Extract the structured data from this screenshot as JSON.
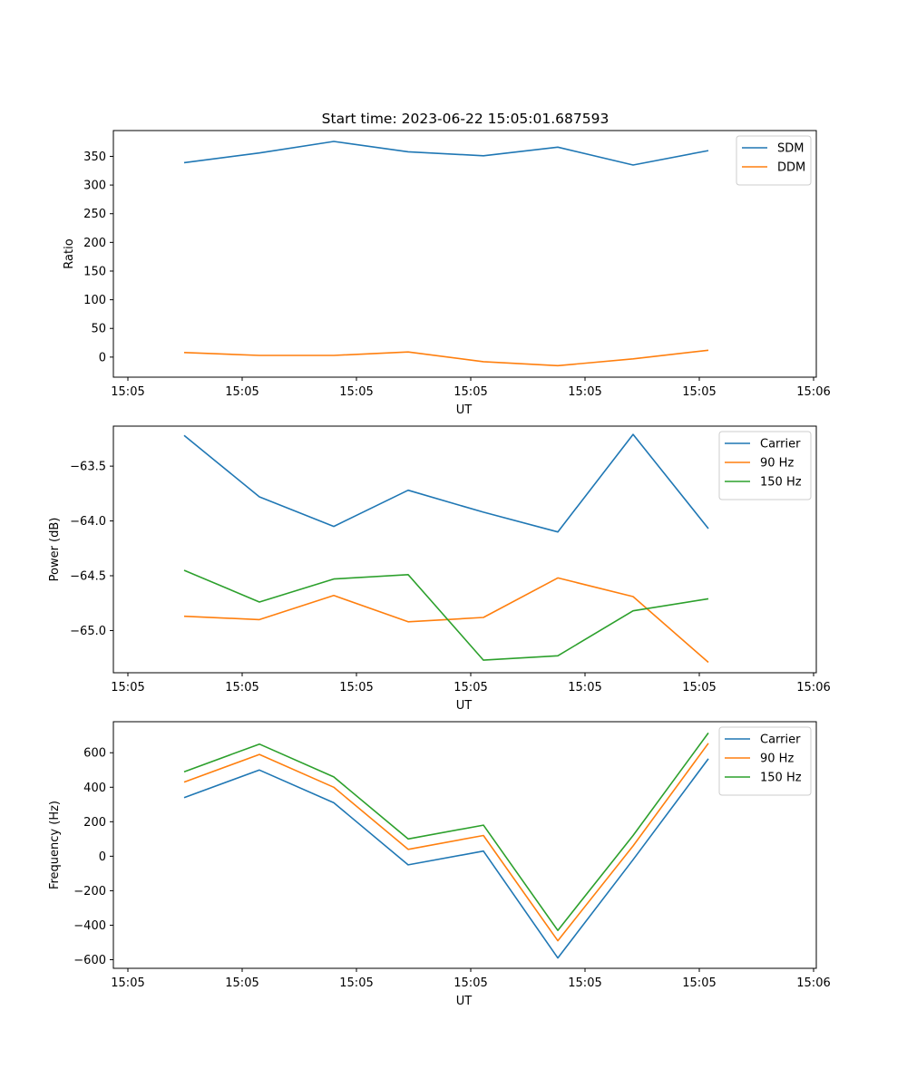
{
  "figure": {
    "title": "Start time: 2023-06-22 15:05:01.687593",
    "colors": {
      "blue": "#1f77b4",
      "orange": "#ff7f0e",
      "green": "#2ca02c"
    }
  },
  "chart_data": [
    {
      "type": "line",
      "title": "Start time: 2023-06-22 15:05:01.687593",
      "xlabel": "UT",
      "ylabel": "Ratio",
      "x_ticks": [
        "15:05",
        "15:05",
        "15:05",
        "15:05",
        "15:05",
        "15:05",
        "15:06"
      ],
      "y_ticks": [
        0,
        50,
        100,
        150,
        200,
        250,
        300,
        350
      ],
      "ylim": [
        -35,
        395
      ],
      "legend": "top-right",
      "grid": false,
      "series": [
        {
          "name": "SDM",
          "color": "#1f77b4",
          "values": [
            339,
            356,
            376,
            358,
            351,
            366,
            335,
            360
          ]
        },
        {
          "name": "DDM",
          "color": "#ff7f0e",
          "values": [
            8,
            3,
            3,
            9,
            -8,
            -15,
            -3,
            12
          ]
        }
      ]
    },
    {
      "type": "line",
      "title": "",
      "xlabel": "UT",
      "ylabel": "Power (dB)",
      "x_ticks": [
        "15:05",
        "15:05",
        "15:05",
        "15:05",
        "15:05",
        "15:05",
        "15:06"
      ],
      "y_ticks": [
        "−63.5",
        "−64.0",
        "−64.5",
        "−65.0"
      ],
      "y_tick_values": [
        -63.5,
        -64.0,
        -64.5,
        -65.0
      ],
      "ylim": [
        -65.385,
        -63.135
      ],
      "legend": "top-right",
      "grid": false,
      "series": [
        {
          "name": "Carrier",
          "color": "#1f77b4",
          "values": [
            -63.22,
            -63.78,
            -64.05,
            -63.72,
            -63.92,
            -64.1,
            -63.21,
            -64.07
          ]
        },
        {
          "name": "90 Hz",
          "color": "#ff7f0e",
          "values": [
            -64.87,
            -64.9,
            -64.68,
            -64.92,
            -64.88,
            -64.52,
            -64.69,
            -65.29
          ]
        },
        {
          "name": "150 Hz",
          "color": "#2ca02c",
          "values": [
            -64.45,
            -64.74,
            -64.53,
            -64.49,
            -65.27,
            -65.23,
            -64.82,
            -64.71
          ]
        }
      ]
    },
    {
      "type": "line",
      "title": "",
      "xlabel": "UT",
      "ylabel": "Frequency (Hz)",
      "x_ticks": [
        "15:05",
        "15:05",
        "15:05",
        "15:05",
        "15:05",
        "15:05",
        "15:06"
      ],
      "y_ticks": [
        "600",
        "400",
        "200",
        "0",
        "−200",
        "−400",
        "−600"
      ],
      "y_tick_values": [
        600,
        400,
        200,
        0,
        -200,
        -400,
        -600
      ],
      "ylim": [
        -650,
        780
      ],
      "legend": "top-right",
      "grid": false,
      "series": [
        {
          "name": "Carrier",
          "color": "#1f77b4",
          "values": [
            340,
            500,
            310,
            -50,
            30,
            -590,
            -20,
            565
          ]
        },
        {
          "name": "90 Hz",
          "color": "#ff7f0e",
          "values": [
            430,
            590,
            400,
            40,
            120,
            -490,
            60,
            655
          ]
        },
        {
          "name": "150 Hz",
          "color": "#2ca02c",
          "values": [
            490,
            650,
            460,
            100,
            180,
            -430,
            120,
            715
          ]
        }
      ]
    }
  ]
}
